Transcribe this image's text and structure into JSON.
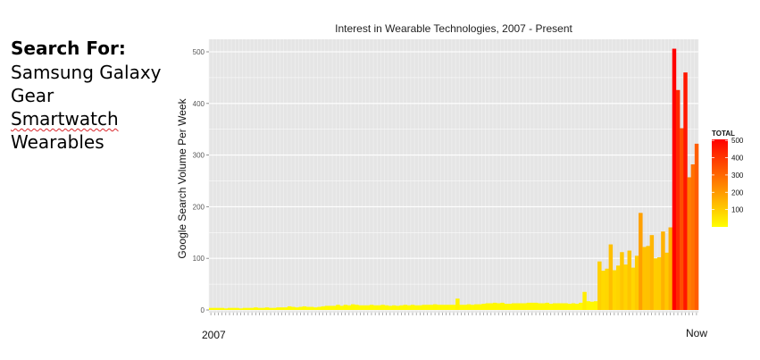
{
  "search": {
    "heading": "Search For:",
    "terms": [
      "Samsung Galaxy",
      "Gear",
      "Smartwatch",
      "Wearables"
    ]
  },
  "chart_data": {
    "type": "bar",
    "title": "Interest in Wearable Technologies, 2007 - Present",
    "ylabel": "Google Search Volume Per Week",
    "xlabel": "",
    "x_start_label": "2007",
    "x_end_label": "Now",
    "ylim": [
      0,
      530
    ],
    "yticks": [
      0,
      100,
      200,
      300,
      400,
      500
    ],
    "grid": true,
    "legend": {
      "title": "TOTAL",
      "placement": "right",
      "ticks": [
        100,
        200,
        300,
        400,
        500
      ],
      "color_low": "#ffff00",
      "color_high": "#ff0000"
    },
    "values": [
      4,
      4,
      4,
      4,
      3,
      4,
      4,
      4,
      3,
      4,
      4,
      4,
      5,
      4,
      4,
      5,
      4,
      4,
      5,
      5,
      5,
      7,
      6,
      5,
      6,
      7,
      6,
      6,
      5,
      6,
      7,
      8,
      8,
      8,
      10,
      8,
      10,
      9,
      11,
      10,
      9,
      9,
      9,
      10,
      9,
      9,
      10,
      9,
      8,
      9,
      8,
      9,
      10,
      9,
      10,
      9,
      9,
      10,
      10,
      10,
      11,
      10,
      10,
      10,
      10,
      10,
      22,
      10,
      10,
      11,
      10,
      11,
      11,
      12,
      13,
      13,
      14,
      13,
      14,
      12,
      12,
      13,
      13,
      13,
      13,
      14,
      14,
      14,
      13,
      13,
      14,
      12,
      13,
      13,
      13,
      13,
      12,
      13,
      12,
      14,
      35,
      17,
      16,
      17,
      94,
      76,
      80,
      127,
      77,
      86,
      112,
      88,
      115,
      82,
      105,
      188,
      122,
      124,
      145,
      100,
      102,
      152,
      111,
      160,
      506,
      426,
      352,
      460,
      257,
      282,
      322
    ]
  }
}
